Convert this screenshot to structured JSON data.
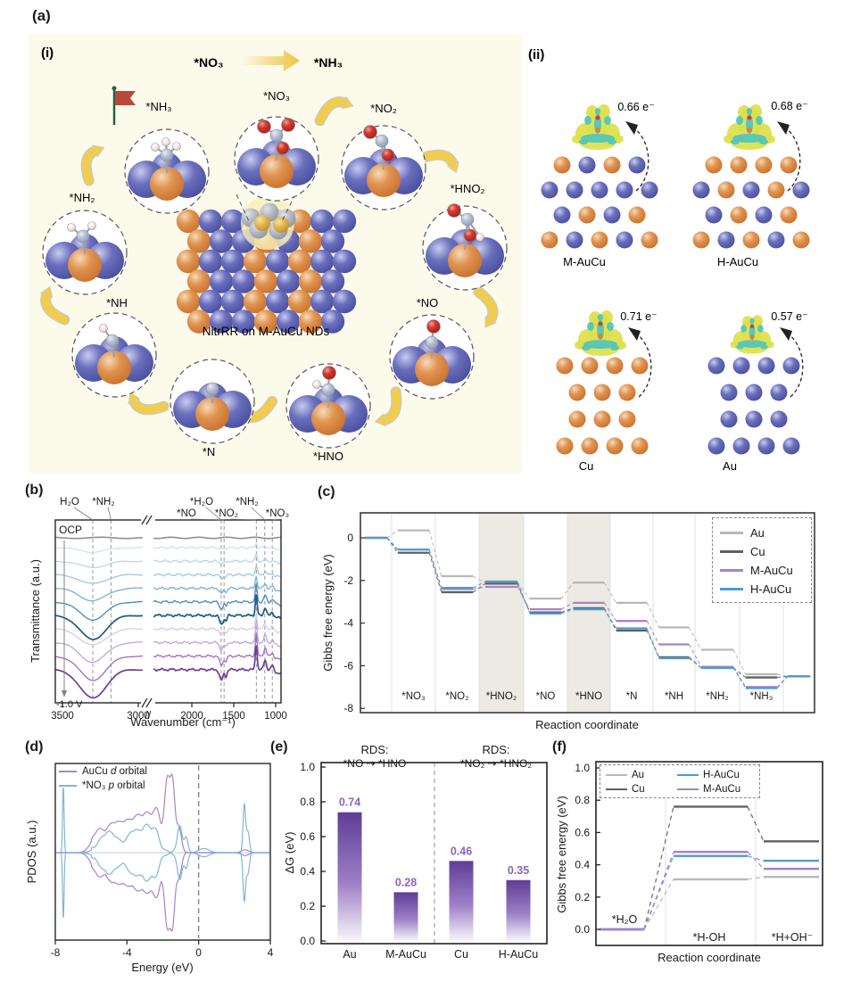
{
  "panel_labels": {
    "a": "(a)",
    "i": "(i)",
    "ii": "(ii)",
    "b": "(b)",
    "c": "(c)",
    "d": "(d)",
    "e": "(e)",
    "f": "(f)"
  },
  "panel_a": {
    "sub_i": {
      "header_from": "*NO₃",
      "header_to": "*NH₃",
      "center_label": "NitrRR on M-AuCu NDs",
      "species": [
        "*NO₃",
        "*NO₂",
        "*HNO₂",
        "*NO",
        "*HNO",
        "*N",
        "*NH",
        "*NH₂",
        "*NH₃"
      ]
    },
    "sub_ii": {
      "panels": [
        {
          "name": "M-AuCu",
          "charge": "0.66 e⁻"
        },
        {
          "name": "H-AuCu",
          "charge": "0.68 e⁻"
        },
        {
          "name": "Cu",
          "charge": "0.71 e⁻"
        },
        {
          "name": "Au",
          "charge": "0.57 e⁻"
        }
      ]
    }
  },
  "chart_data": {
    "panel_b": {
      "type": "line",
      "xlabel": "Wavenumber (cm⁻¹)",
      "ylabel": "Transmittance (a.u.)",
      "x_ticks_left": [
        3500,
        3000
      ],
      "x_ticks_right": [
        2000,
        1500,
        1000
      ],
      "axis_break": true,
      "top_label": "OCP",
      "bottom_label": "-1.0 V",
      "peaks_left": [
        {
          "label": "H₂O",
          "wavenumber": 3300
        },
        {
          "label": "*NH₂",
          "wavenumber": 3180
        }
      ],
      "peaks_right": [
        {
          "label": "*H₂O",
          "wavenumber": 1650
        },
        {
          "label": "*NO",
          "wavenumber": 1615
        },
        {
          "label": "*NO₂",
          "wavenumber": 1230
        },
        {
          "label": "*NH₂",
          "wavenumber": 1130
        },
        {
          "label": "*NO₃",
          "wavenumber": 1040
        }
      ],
      "spectra_count": 10,
      "ocp_color": "#8f8f8f",
      "curve_colors": [
        "#cfe2f1",
        "#b9d6ec",
        "#9dc6e3",
        "#79afd7",
        "#4787b8",
        "#1d5a85",
        "#d9c9e9",
        "#c0a4d9",
        "#9a6cbd",
        "#6e3f95"
      ]
    },
    "panel_c": {
      "type": "line",
      "xlabel": "Reaction coordinate",
      "ylabel": "Gibbs free energy (eV)",
      "yticks": [
        0,
        -2,
        -4,
        -6,
        -8
      ],
      "ylim": [
        -8,
        0.5
      ],
      "categories": [
        "*NO₃",
        "*NO₂",
        "*HNO₂",
        "*NO",
        "*HNO",
        "*N",
        "*NH",
        "*NH₂",
        "*NH₃"
      ],
      "highlighted_steps": [
        "*HNO₂",
        "*HNO"
      ],
      "series": [
        {
          "name": "Au",
          "color": "#b8b8b8",
          "values": [
            0,
            0.35,
            -1.8,
            -2.1,
            -2.85,
            -2.1,
            -3.05,
            -4.2,
            -5.25,
            -6.4,
            -6.5
          ]
        },
        {
          "name": "Cu",
          "color": "#5f6062",
          "values": [
            0,
            -0.7,
            -2.55,
            -2.15,
            -3.5,
            -3.3,
            -4.35,
            -5.6,
            -6.1,
            -6.55,
            -6.5
          ]
        },
        {
          "name": "M-AuCu",
          "color": "#a983c7",
          "values": [
            0,
            -0.55,
            -2.4,
            -2.3,
            -3.35,
            -3.05,
            -3.9,
            -5.0,
            -6.05,
            -7.0,
            -6.5
          ]
        },
        {
          "name": "H-AuCu",
          "color": "#4f9ad2",
          "values": [
            0,
            -0.55,
            -2.35,
            -2.05,
            -3.55,
            -3.35,
            -4.25,
            -5.65,
            -6.1,
            -7.05,
            -6.5
          ]
        }
      ]
    },
    "panel_d": {
      "type": "line",
      "xlabel": "Energy (eV)",
      "ylabel": "PDOS (a.u.)",
      "xticks": [
        -8,
        -4,
        0,
        4
      ],
      "fermi_level_x": 0,
      "mirrored_spin": true,
      "legend": [
        {
          "pre": "AuCu ",
          "it": "d",
          "post": " orbital",
          "color": "#a983c7"
        },
        {
          "pre": "*NO₃ ",
          "it": "p",
          "post": " orbital",
          "color": "#7fb6d6"
        }
      ],
      "series": [
        {
          "name": "AuCu d orbital",
          "color": "#a983c7",
          "peaks": [
            [
              -5.6,
              0.5,
              0.3
            ],
            [
              -4.8,
              0.45,
              0.34
            ],
            [
              -4.1,
              0.5,
              0.38
            ],
            [
              -3.4,
              0.45,
              0.42
            ],
            [
              -2.8,
              0.4,
              0.45
            ],
            [
              -2.3,
              0.3,
              0.5
            ],
            [
              -1.75,
              0.22,
              1.0
            ],
            [
              -1.45,
              0.18,
              0.9
            ],
            [
              -1.1,
              0.2,
              0.35
            ],
            [
              2.6,
              0.3,
              0.04
            ]
          ]
        },
        {
          "name": "*NO₃ p orbital",
          "color": "#7fb6d6",
          "peaks": [
            [
              -7.55,
              0.06,
              0.95
            ],
            [
              -5.0,
              0.7,
              0.28
            ],
            [
              -3.6,
              0.5,
              0.3
            ],
            [
              -2.9,
              0.35,
              0.32
            ],
            [
              -2.4,
              0.3,
              0.28
            ],
            [
              -1.05,
              0.18,
              0.38
            ],
            [
              -0.7,
              0.15,
              0.22
            ],
            [
              0.3,
              0.4,
              0.06
            ],
            [
              2.55,
              0.1,
              0.68
            ],
            [
              2.75,
              0.12,
              0.3
            ]
          ]
        }
      ]
    },
    "panel_e": {
      "type": "bar",
      "ylabel": "ΔG (eV)",
      "ylim": [
        0,
        1.0
      ],
      "yticks": [
        "0.0",
        "0.2",
        "0.4",
        "0.6",
        "0.8",
        "1.0"
      ],
      "categories": [
        "Au",
        "M-AuCu",
        "Cu",
        "H-AuCu"
      ],
      "values": [
        0.74,
        0.28,
        0.46,
        0.35
      ],
      "groups": [
        {
          "header": "RDS:",
          "reaction": "*NO ⇢ *HNO"
        },
        {
          "header": "RDS:",
          "reaction": "*NO₂ ⇢ *HNO₂"
        }
      ],
      "bar_color_top": "#5f3d96",
      "value_color": "#8d65b5"
    },
    "panel_f": {
      "type": "line",
      "xlabel": "Reaction coordinate",
      "ylabel": "Gibbs free energy (eV)",
      "ylim": [
        0,
        1.0
      ],
      "yticks": [
        "0.0",
        "0.2",
        "0.4",
        "0.6",
        "0.8",
        "1.0"
      ],
      "categories": [
        "*H₂O",
        "*H-OH",
        "*H+OH⁻"
      ],
      "series": [
        {
          "name": "Au",
          "color": "#b8b8b8",
          "values": [
            0,
            0.31,
            0.325
          ]
        },
        {
          "name": "Cu",
          "color": "#5f6062",
          "values": [
            0,
            0.76,
            0.545
          ]
        },
        {
          "name": "H-AuCu",
          "color": "#4f9ad2",
          "values": [
            0,
            0.455,
            0.425
          ]
        },
        {
          "name": "M-AuCu",
          "color": "#a983c7",
          "values": [
            0,
            0.48,
            0.375
          ]
        }
      ]
    }
  },
  "colors": {
    "cream_bg": "#fbfaeb",
    "atom_blue": "#5a60b2",
    "atom_orange": "#dd8446",
    "iso_yellow": "#dde04a",
    "iso_cyan": "#4cc4c0",
    "arrow_gold": "#f2cd49",
    "flag_red": "#b8493a"
  }
}
